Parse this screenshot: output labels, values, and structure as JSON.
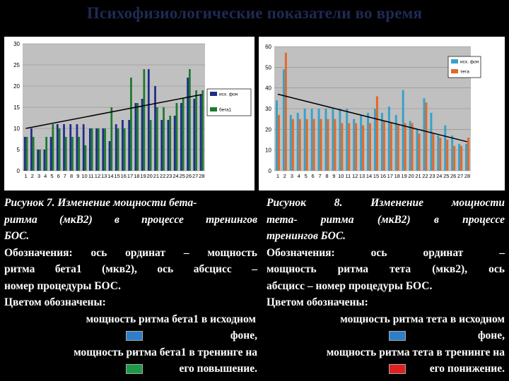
{
  "title": "Психофизиологические показатели во время",
  "chart_data": [
    {
      "type": "bar",
      "categories": [
        "1",
        "2",
        "3",
        "4",
        "5",
        "6",
        "7",
        "8",
        "9",
        "10",
        "11",
        "12",
        "13",
        "14",
        "15",
        "16",
        "17",
        "18",
        "19",
        "20",
        "21",
        "22",
        "23",
        "24",
        "25",
        "26",
        "27",
        "28"
      ],
      "series": [
        {
          "name": "исх. фон",
          "color": "#1f2d8a",
          "values": [
            8,
            10,
            5,
            5,
            8,
            11,
            11,
            11,
            11,
            11,
            10,
            10,
            10,
            7,
            11,
            12,
            12,
            16,
            17,
            24,
            20,
            12,
            12,
            13,
            16,
            22,
            17,
            18
          ]
        },
        {
          "name": "бета1",
          "color": "#1c7a2e",
          "values": [
            8,
            8,
            5,
            8,
            11,
            10,
            8,
            8,
            8,
            6,
            10,
            10,
            10,
            15,
            10,
            10,
            22,
            16,
            24,
            12,
            15,
            15,
            13,
            16,
            17,
            24,
            19,
            19
          ]
        }
      ],
      "trend": {
        "start": 10,
        "end": 18
      },
      "ylim": [
        0,
        30
      ],
      "yticks": [
        0,
        5,
        10,
        15,
        20,
        25,
        30
      ],
      "grid": true,
      "legend_position": "right"
    },
    {
      "type": "bar",
      "categories": [
        "1",
        "2",
        "3",
        "4",
        "5",
        "6",
        "7",
        "8",
        "9",
        "10",
        "11",
        "12",
        "13",
        "14",
        "15",
        "16",
        "17",
        "18",
        "19",
        "20",
        "21",
        "22",
        "23",
        "24",
        "25",
        "26",
        "27",
        "28"
      ],
      "series": [
        {
          "name": "исх. фон",
          "color": "#3aa0c8",
          "values": [
            34,
            49,
            27,
            28,
            30,
            30,
            30,
            30,
            30,
            30,
            30,
            25,
            27,
            28,
            30,
            28,
            31,
            27,
            39,
            24,
            20,
            35,
            28,
            17,
            22,
            17,
            13,
            13
          ]
        },
        {
          "name": "тета",
          "color": "#e06a2a",
          "values": [
            27,
            57,
            25,
            25,
            25,
            25,
            25,
            25,
            25,
            23,
            23,
            23,
            22,
            23,
            36,
            24,
            23,
            22,
            23,
            23,
            18,
            33,
            18,
            16,
            15,
            12,
            12,
            16
          ]
        }
      ],
      "trend": {
        "start": 37,
        "end": 14
      },
      "ylim": [
        0,
        60
      ],
      "yticks": [
        0,
        10,
        20,
        30,
        40,
        50,
        60
      ],
      "grid": true,
      "legend_position": "top-right"
    }
  ],
  "caption1": {
    "l1": "Рисунок 7. Изменение мощности бета-",
    "l2": "ритма (мкВ2) в процессе тренингов",
    "l3": "БОС.",
    "l4": "Обозначения: ось ординат – мощность",
    "l5": "ритма бета1 (мкв2), ось абсцисс –",
    "l6": "номер процедуры БОС.",
    "l7": "Цветом обозначены:",
    "l8": "мощность ритма бета1 в исходном",
    "l9": "фоне,",
    "l10": "мощность ритма бета1 в тренинге на",
    "l11": "его повышение.",
    "sw1": "#2f7fc8",
    "sw2": "#1c9a48"
  },
  "caption2": {
    "l1": "Рисунок 8. Изменение мощности",
    "l2": "тета- ритма (мкВ2) в процессе",
    "l3": "тренингов БОС.",
    "l4": "Обозначения: ось ординат –",
    "l5": "мощность ритма тета (мкв2), ось",
    "l6": "абсцисс – номер процедуры БОС.",
    "l7": "Цветом обозначены:",
    "l8": "мощность ритма тета в исходном",
    "l9": "фоне,",
    "l10": "мощность ритма тета в тренинге на",
    "l11": "его понижение.",
    "sw1": "#2f7fc8",
    "sw2": "#e02020"
  }
}
